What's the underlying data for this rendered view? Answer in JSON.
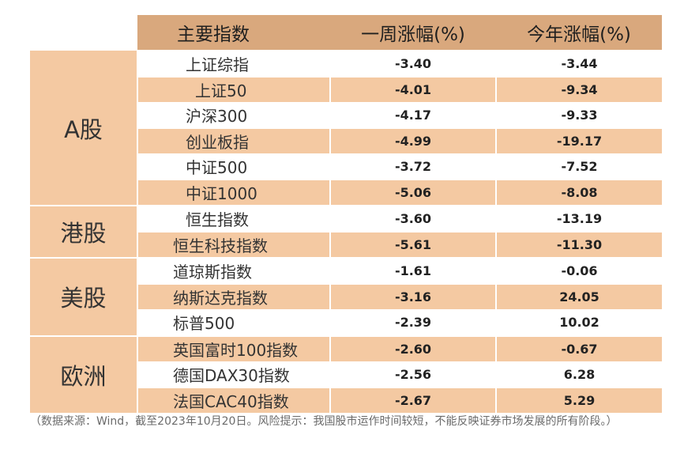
{
  "headers": {
    "index": "主要指数",
    "weekly": "一周涨幅(%)",
    "ytd": "今年涨幅(%)"
  },
  "groups": [
    {
      "label": "A股",
      "rows": [
        {
          "name": "上证综指",
          "weekly": "-3.40",
          "ytd": "-3.44",
          "indent": 60
        },
        {
          "name": "上证50",
          "weekly": "-4.01",
          "ytd": "-9.34",
          "indent": 72
        },
        {
          "name": "沪深300",
          "weekly": "-4.17",
          "ytd": "-9.33",
          "indent": 60
        },
        {
          "name": "创业板指",
          "weekly": "-4.99",
          "ytd": "-19.17",
          "indent": 60
        },
        {
          "name": "中证500",
          "weekly": "-3.72",
          "ytd": "-7.52",
          "indent": 60
        },
        {
          "name": "中证1000",
          "weekly": "-5.06",
          "ytd": "-8.08",
          "indent": 60
        }
      ]
    },
    {
      "label": "港股",
      "rows": [
        {
          "name": "恒生指数",
          "weekly": "-3.60",
          "ytd": "-13.19",
          "indent": 60
        },
        {
          "name": "恒生科技指数",
          "weekly": "-5.61",
          "ytd": "-11.30",
          "indent": 44
        }
      ]
    },
    {
      "label": "美股",
      "rows": [
        {
          "name": "道琼斯指数",
          "weekly": "-1.61",
          "ytd": "-0.06",
          "indent": 44
        },
        {
          "name": "纳斯达克指数",
          "weekly": "-3.16",
          "ytd": "24.05",
          "indent": 44
        },
        {
          "name": "标普500",
          "weekly": "-2.39",
          "ytd": "10.02",
          "indent": 44
        }
      ]
    },
    {
      "label": "欧洲",
      "rows": [
        {
          "name": "英国富时100指数",
          "weekly": "-2.60",
          "ytd": "-0.67",
          "indent": 44
        },
        {
          "name": "德国DAX30指数",
          "weekly": "-2.56",
          "ytd": "6.28",
          "indent": 44
        },
        {
          "name": "法国CAC40指数",
          "weekly": "-2.67",
          "ytd": "5.29",
          "indent": 44
        }
      ]
    }
  ],
  "footnote": "（数据来源：Wind，截至2023年10月20日。风险提示：我国股市运作时间较短，不能反映证券市场发展的所有阶段。）",
  "colors": {
    "header_bg": "#d9a87d",
    "band_bg": "#f4c9a2",
    "plain_bg": "#ffffff"
  }
}
